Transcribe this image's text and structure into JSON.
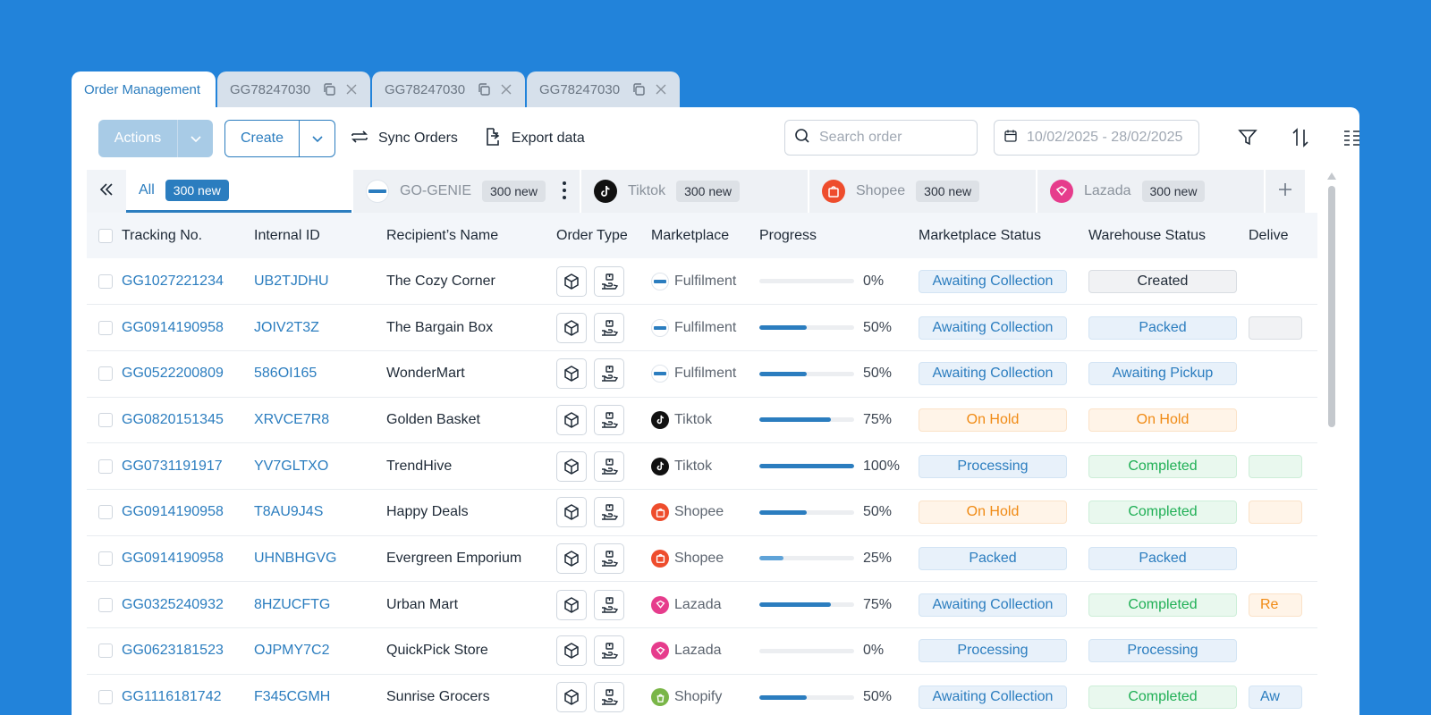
{
  "window_tabs": [
    {
      "label": "Order Management",
      "active": true
    },
    {
      "label": "GG78247030",
      "active": false
    },
    {
      "label": "GG78247030",
      "active": false
    },
    {
      "label": "GG78247030",
      "active": false
    }
  ],
  "toolbar": {
    "actions_label": "Actions",
    "create_label": "Create",
    "sync_label": "Sync Orders",
    "export_label": "Export data",
    "search_placeholder": "Search order",
    "date_range": "10/02/2025 - 28/02/2025"
  },
  "marketplace_tabs": [
    {
      "label": "All",
      "badge": "300 new"
    },
    {
      "label": "GO-GENIE",
      "badge": "300 new"
    },
    {
      "label": "Tiktok",
      "badge": "300 new"
    },
    {
      "label": "Shopee",
      "badge": "300 new"
    },
    {
      "label": "Lazada",
      "badge": "300 new"
    }
  ],
  "table": {
    "headers": [
      "Tracking No.",
      "Internal ID",
      "Recipient’s Name",
      "Order Type",
      "Marketplace",
      "Progress",
      "Marketplace Status",
      "Warehouse Status",
      "Delive"
    ],
    "rows": [
      {
        "tracking": "GG1027221234",
        "internal": "UB2TJDHU",
        "recipient": "The Cozy Corner",
        "marketplace": "Fulfilment",
        "mp": "gogenie",
        "progress": 0,
        "progress_label": "0%",
        "mp_status": "Awaiting Collection",
        "mp_status_color": "blue",
        "wh_status": "Created",
        "wh_status_color": "grey",
        "delivery": "",
        "delivery_color": ""
      },
      {
        "tracking": "GG0914190958",
        "internal": "JOIV2T3Z",
        "recipient": "The Bargain Box",
        "marketplace": "Fulfilment",
        "mp": "gogenie",
        "progress": 50,
        "progress_label": "50%",
        "mp_status": "Awaiting Collection",
        "mp_status_color": "blue",
        "wh_status": "Packed",
        "wh_status_color": "blue",
        "delivery": "",
        "delivery_color": "grey"
      },
      {
        "tracking": "GG0522200809",
        "internal": "586OI165",
        "recipient": "WonderMart",
        "marketplace": "Fulfilment",
        "mp": "gogenie",
        "progress": 50,
        "progress_label": "50%",
        "mp_status": "Awaiting Collection",
        "mp_status_color": "blue",
        "wh_status": "Awaiting Pickup",
        "wh_status_color": "blue",
        "delivery": "",
        "delivery_color": ""
      },
      {
        "tracking": "GG0820151345",
        "internal": "XRVCE7R8",
        "recipient": "Golden Basket",
        "marketplace": "Tiktok",
        "mp": "tiktok",
        "progress": 75,
        "progress_label": "75%",
        "mp_status": "On Hold",
        "mp_status_color": "orange",
        "wh_status": "On Hold",
        "wh_status_color": "orange",
        "delivery": "",
        "delivery_color": ""
      },
      {
        "tracking": "GG0731191917",
        "internal": "YV7GLTXO",
        "recipient": "TrendHive",
        "marketplace": "Tiktok",
        "mp": "tiktok",
        "progress": 100,
        "progress_label": "100%",
        "mp_status": "Processing",
        "mp_status_color": "blue",
        "wh_status": "Completed",
        "wh_status_color": "green",
        "delivery": "",
        "delivery_color": "green"
      },
      {
        "tracking": "GG0914190958",
        "internal": "T8AU9J4S",
        "recipient": "Happy Deals",
        "marketplace": "Shopee",
        "mp": "shopee",
        "progress": 50,
        "progress_label": "50%",
        "mp_status": "On Hold",
        "mp_status_color": "orange",
        "wh_status": "Completed",
        "wh_status_color": "green",
        "delivery": "",
        "delivery_color": "orange"
      },
      {
        "tracking": "GG0914190958",
        "internal": "UHNBHGVG",
        "recipient": "Evergreen Emporium",
        "marketplace": "Shopee",
        "mp": "shopee",
        "progress": 25,
        "progress_label": "25%",
        "mp_status": "Packed",
        "mp_status_color": "blue",
        "wh_status": "Packed",
        "wh_status_color": "blue",
        "delivery": "",
        "delivery_color": ""
      },
      {
        "tracking": "GG0325240932",
        "internal": "8HZUCFTG",
        "recipient": "Urban Mart",
        "marketplace": "Lazada",
        "mp": "lazada",
        "progress": 75,
        "progress_label": "75%",
        "mp_status": "Awaiting Collection",
        "mp_status_color": "blue",
        "wh_status": "Completed",
        "wh_status_color": "green",
        "delivery": "Re",
        "delivery_color": "orange"
      },
      {
        "tracking": "GG0623181523",
        "internal": "OJPMY7C2",
        "recipient": "QuickPick Store",
        "marketplace": "Lazada",
        "mp": "lazada",
        "progress": 0,
        "progress_label": "0%",
        "mp_status": "Processing",
        "mp_status_color": "blue",
        "wh_status": "Processing",
        "wh_status_color": "blue",
        "delivery": "",
        "delivery_color": ""
      },
      {
        "tracking": "GG1116181742",
        "internal": "F345CGMH",
        "recipient": "Sunrise Grocers",
        "marketplace": "Shopify",
        "mp": "shopify",
        "progress": 50,
        "progress_label": "50%",
        "mp_status": "Awaiting Collection",
        "mp_status_color": "blue",
        "wh_status": "Completed",
        "wh_status_color": "green",
        "delivery": "Aw",
        "delivery_color": "blue"
      }
    ]
  },
  "icons": {
    "sync": "sync-icon",
    "export": "export-icon",
    "search": "search-icon",
    "calendar": "calendar-icon",
    "filter": "filter-icon",
    "sort": "sort-icon",
    "columns": "columns-icon",
    "copy": "copy-icon",
    "close": "close-icon"
  },
  "colors": {
    "accent": "#2b7dbf",
    "background": "#2283da"
  }
}
